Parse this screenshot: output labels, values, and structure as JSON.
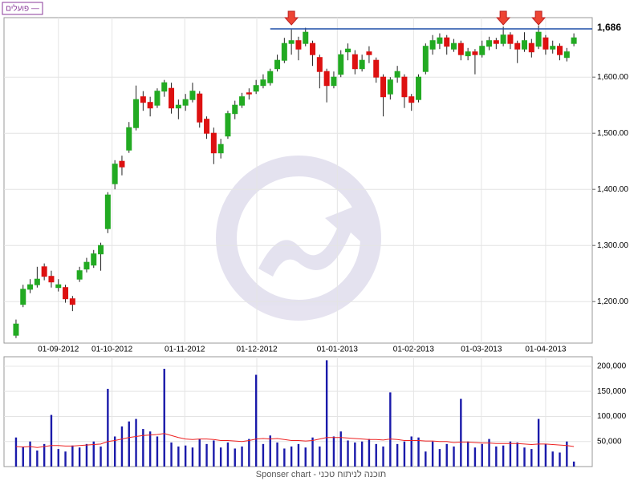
{
  "chart_data": {
    "type": "candlestick",
    "legend": "פועלים —",
    "footer": "Sponser chart - תוכנה לניתוח טכני",
    "x": [
      0,
      1,
      2,
      3,
      4,
      5,
      6,
      7,
      8,
      9,
      10,
      11,
      12,
      13,
      14,
      15,
      16,
      17,
      18,
      19,
      20,
      21,
      22,
      23,
      24,
      25,
      26,
      27,
      28,
      29,
      30,
      31,
      32,
      33,
      34,
      35,
      36,
      37,
      38,
      39,
      40,
      41,
      42,
      43,
      44,
      45,
      46,
      47,
      48,
      49,
      50,
      51,
      52,
      53,
      54,
      55,
      56,
      57,
      58,
      59,
      60,
      61,
      62,
      63,
      64,
      65,
      66,
      67,
      68,
      69,
      70,
      71,
      72,
      73,
      74,
      75,
      76,
      77,
      78,
      79
    ],
    "candles": [
      [
        1140,
        1168,
        1135,
        1160
      ],
      [
        1195,
        1230,
        1190,
        1222
      ],
      [
        1222,
        1240,
        1215,
        1230
      ],
      [
        1230,
        1262,
        1225,
        1240
      ],
      [
        1262,
        1268,
        1238,
        1245
      ],
      [
        1245,
        1255,
        1225,
        1235
      ],
      [
        1225,
        1240,
        1218,
        1230
      ],
      [
        1225,
        1230,
        1198,
        1205
      ],
      [
        1205,
        1210,
        1183,
        1195
      ],
      [
        1240,
        1262,
        1235,
        1255
      ],
      [
        1258,
        1278,
        1252,
        1270
      ],
      [
        1265,
        1292,
        1260,
        1285
      ],
      [
        1285,
        1305,
        1255,
        1300
      ],
      [
        1330,
        1395,
        1322,
        1390
      ],
      [
        1410,
        1452,
        1400,
        1445
      ],
      [
        1450,
        1460,
        1425,
        1440
      ],
      [
        1470,
        1520,
        1465,
        1510
      ],
      [
        1510,
        1585,
        1505,
        1560
      ],
      [
        1565,
        1575,
        1540,
        1555
      ],
      [
        1555,
        1565,
        1530,
        1545
      ],
      [
        1550,
        1580,
        1545,
        1575
      ],
      [
        1575,
        1595,
        1565,
        1590
      ],
      [
        1580,
        1590,
        1535,
        1545
      ],
      [
        1545,
        1560,
        1525,
        1550
      ],
      [
        1550,
        1570,
        1540,
        1560
      ],
      [
        1560,
        1590,
        1555,
        1575
      ],
      [
        1570,
        1575,
        1510,
        1520
      ],
      [
        1525,
        1530,
        1490,
        1500
      ],
      [
        1500,
        1510,
        1445,
        1465
      ],
      [
        1465,
        1490,
        1455,
        1480
      ],
      [
        1495,
        1540,
        1490,
        1535
      ],
      [
        1535,
        1558,
        1525,
        1550
      ],
      [
        1550,
        1572,
        1545,
        1565
      ],
      [
        1572,
        1580,
        1560,
        1570
      ],
      [
        1575,
        1595,
        1570,
        1585
      ],
      [
        1585,
        1605,
        1580,
        1595
      ],
      [
        1590,
        1615,
        1585,
        1610
      ],
      [
        1615,
        1640,
        1610,
        1630
      ],
      [
        1630,
        1670,
        1625,
        1660
      ],
      [
        1660,
        1685,
        1640,
        1665
      ],
      [
        1665,
        1672,
        1630,
        1650
      ],
      [
        1660,
        1688,
        1655,
        1680
      ],
      [
        1660,
        1665,
        1620,
        1640
      ],
      [
        1635,
        1640,
        1580,
        1610
      ],
      [
        1610,
        1615,
        1555,
        1585
      ],
      [
        1585,
        1610,
        1580,
        1600
      ],
      [
        1605,
        1648,
        1600,
        1640
      ],
      [
        1645,
        1660,
        1630,
        1650
      ],
      [
        1640,
        1648,
        1605,
        1615
      ],
      [
        1615,
        1640,
        1610,
        1630
      ],
      [
        1645,
        1655,
        1625,
        1640
      ],
      [
        1630,
        1635,
        1590,
        1600
      ],
      [
        1600,
        1605,
        1530,
        1565
      ],
      [
        1570,
        1600,
        1560,
        1595
      ],
      [
        1600,
        1620,
        1590,
        1610
      ],
      [
        1600,
        1605,
        1545,
        1565
      ],
      [
        1565,
        1570,
        1540,
        1555
      ],
      [
        1560,
        1605,
        1555,
        1600
      ],
      [
        1610,
        1660,
        1605,
        1655
      ],
      [
        1650,
        1675,
        1640,
        1665
      ],
      [
        1660,
        1678,
        1650,
        1670
      ],
      [
        1670,
        1675,
        1640,
        1655
      ],
      [
        1650,
        1668,
        1645,
        1660
      ],
      [
        1660,
        1665,
        1630,
        1640
      ],
      [
        1638,
        1652,
        1630,
        1645
      ],
      [
        1645,
        1650,
        1605,
        1640
      ],
      [
        1640,
        1665,
        1635,
        1655
      ],
      [
        1655,
        1672,
        1648,
        1665
      ],
      [
        1665,
        1670,
        1650,
        1660
      ],
      [
        1660,
        1690,
        1655,
        1675
      ],
      [
        1675,
        1680,
        1650,
        1660
      ],
      [
        1660,
        1665,
        1625,
        1650
      ],
      [
        1650,
        1680,
        1645,
        1665
      ],
      [
        1660,
        1668,
        1635,
        1645
      ],
      [
        1655,
        1692,
        1650,
        1680
      ],
      [
        1670,
        1675,
        1640,
        1650
      ],
      [
        1650,
        1665,
        1642,
        1655
      ],
      [
        1655,
        1660,
        1630,
        1640
      ],
      [
        1635,
        1652,
        1628,
        1645
      ],
      [
        1660,
        1678,
        1655,
        1670
      ]
    ],
    "up_color": "#22aa22",
    "down_color": "#dd1111",
    "xlim": [
      -1.7,
      81.6
    ],
    "xticks": [
      {
        "value": 6,
        "label": "01-09-2012"
      },
      {
        "value": 13.6,
        "label": "01-10-2012"
      },
      {
        "value": 23.9,
        "label": "01-11-2012"
      },
      {
        "value": 34.1,
        "label": "01-12-2012"
      },
      {
        "value": 45.5,
        "label": "01-01-2013"
      },
      {
        "value": 56.3,
        "label": "01-02-2013"
      },
      {
        "value": 65.9,
        "label": "01-03-2013"
      },
      {
        "value": 75,
        "label": "01-04-2013"
      }
    ],
    "ylim": [
      1126,
      1706
    ],
    "yticks": [
      {
        "value": 1200,
        "label": "1,200.00"
      },
      {
        "value": 1300,
        "label": "1,300.00"
      },
      {
        "value": 1400,
        "label": "1,400.00"
      },
      {
        "value": 1500,
        "label": "1,500.00"
      },
      {
        "value": 1600,
        "label": "1,600.00"
      }
    ],
    "resistance": {
      "value": 1686,
      "label": "1,686",
      "start": 36,
      "color": "#1f4fa8"
    },
    "arrows": [
      39,
      69,
      74
    ],
    "arrow_color": "#ee4433",
    "volume": {
      "values": [
        58000,
        40000,
        50000,
        32000,
        45000,
        103000,
        35000,
        30000,
        42000,
        38000,
        45000,
        50000,
        40000,
        155000,
        60000,
        80000,
        90000,
        95000,
        75000,
        70000,
        60000,
        195000,
        48000,
        40000,
        42000,
        38000,
        55000,
        45000,
        52000,
        38000,
        48000,
        36000,
        40000,
        55000,
        183000,
        45000,
        62000,
        48000,
        36000,
        40000,
        45000,
        38000,
        58000,
        40000,
        212000,
        60000,
        70000,
        52000,
        48000,
        50000,
        55000,
        45000,
        40000,
        148000,
        45000,
        50000,
        60000,
        58000,
        30000,
        50000,
        35000,
        45000,
        40000,
        135000,
        50000,
        38000,
        45000,
        55000,
        40000,
        42000,
        50000,
        48000,
        38000,
        35000,
        95000,
        45000,
        30000,
        28000,
        50000,
        10000
      ],
      "color": "#1a1aaa",
      "average": [
        40000,
        39000,
        40000,
        38000,
        40000,
        42000,
        42000,
        41000,
        41000,
        42000,
        43000,
        44000,
        45000,
        50000,
        52000,
        55000,
        58000,
        60000,
        62000,
        63000,
        64000,
        66000,
        62000,
        58000,
        55000,
        54000,
        55000,
        55000,
        54000,
        52000,
        52000,
        51000,
        50000,
        52000,
        55000,
        56000,
        55000,
        56000,
        54000,
        52000,
        52000,
        51000,
        52000,
        55000,
        58000,
        58000,
        58000,
        57000,
        56000,
        55000,
        54000,
        54000,
        53000,
        55000,
        54000,
        52000,
        52000,
        52000,
        51000,
        51000,
        50000,
        50000,
        48000,
        49000,
        49000,
        48000,
        47000,
        47000,
        46000,
        46000,
        46000,
        46000,
        45000,
        44000,
        45000,
        45000,
        44000,
        43000,
        42000,
        40000
      ],
      "average_color": "#ee2222",
      "ylim": [
        0,
        219000
      ],
      "yticks": [
        {
          "value": 50000,
          "label": "50,000"
        },
        {
          "value": 100000,
          "label": "100,000"
        },
        {
          "value": 150000,
          "label": "150,000"
        },
        {
          "value": 200000,
          "label": "200,000"
        }
      ]
    }
  }
}
